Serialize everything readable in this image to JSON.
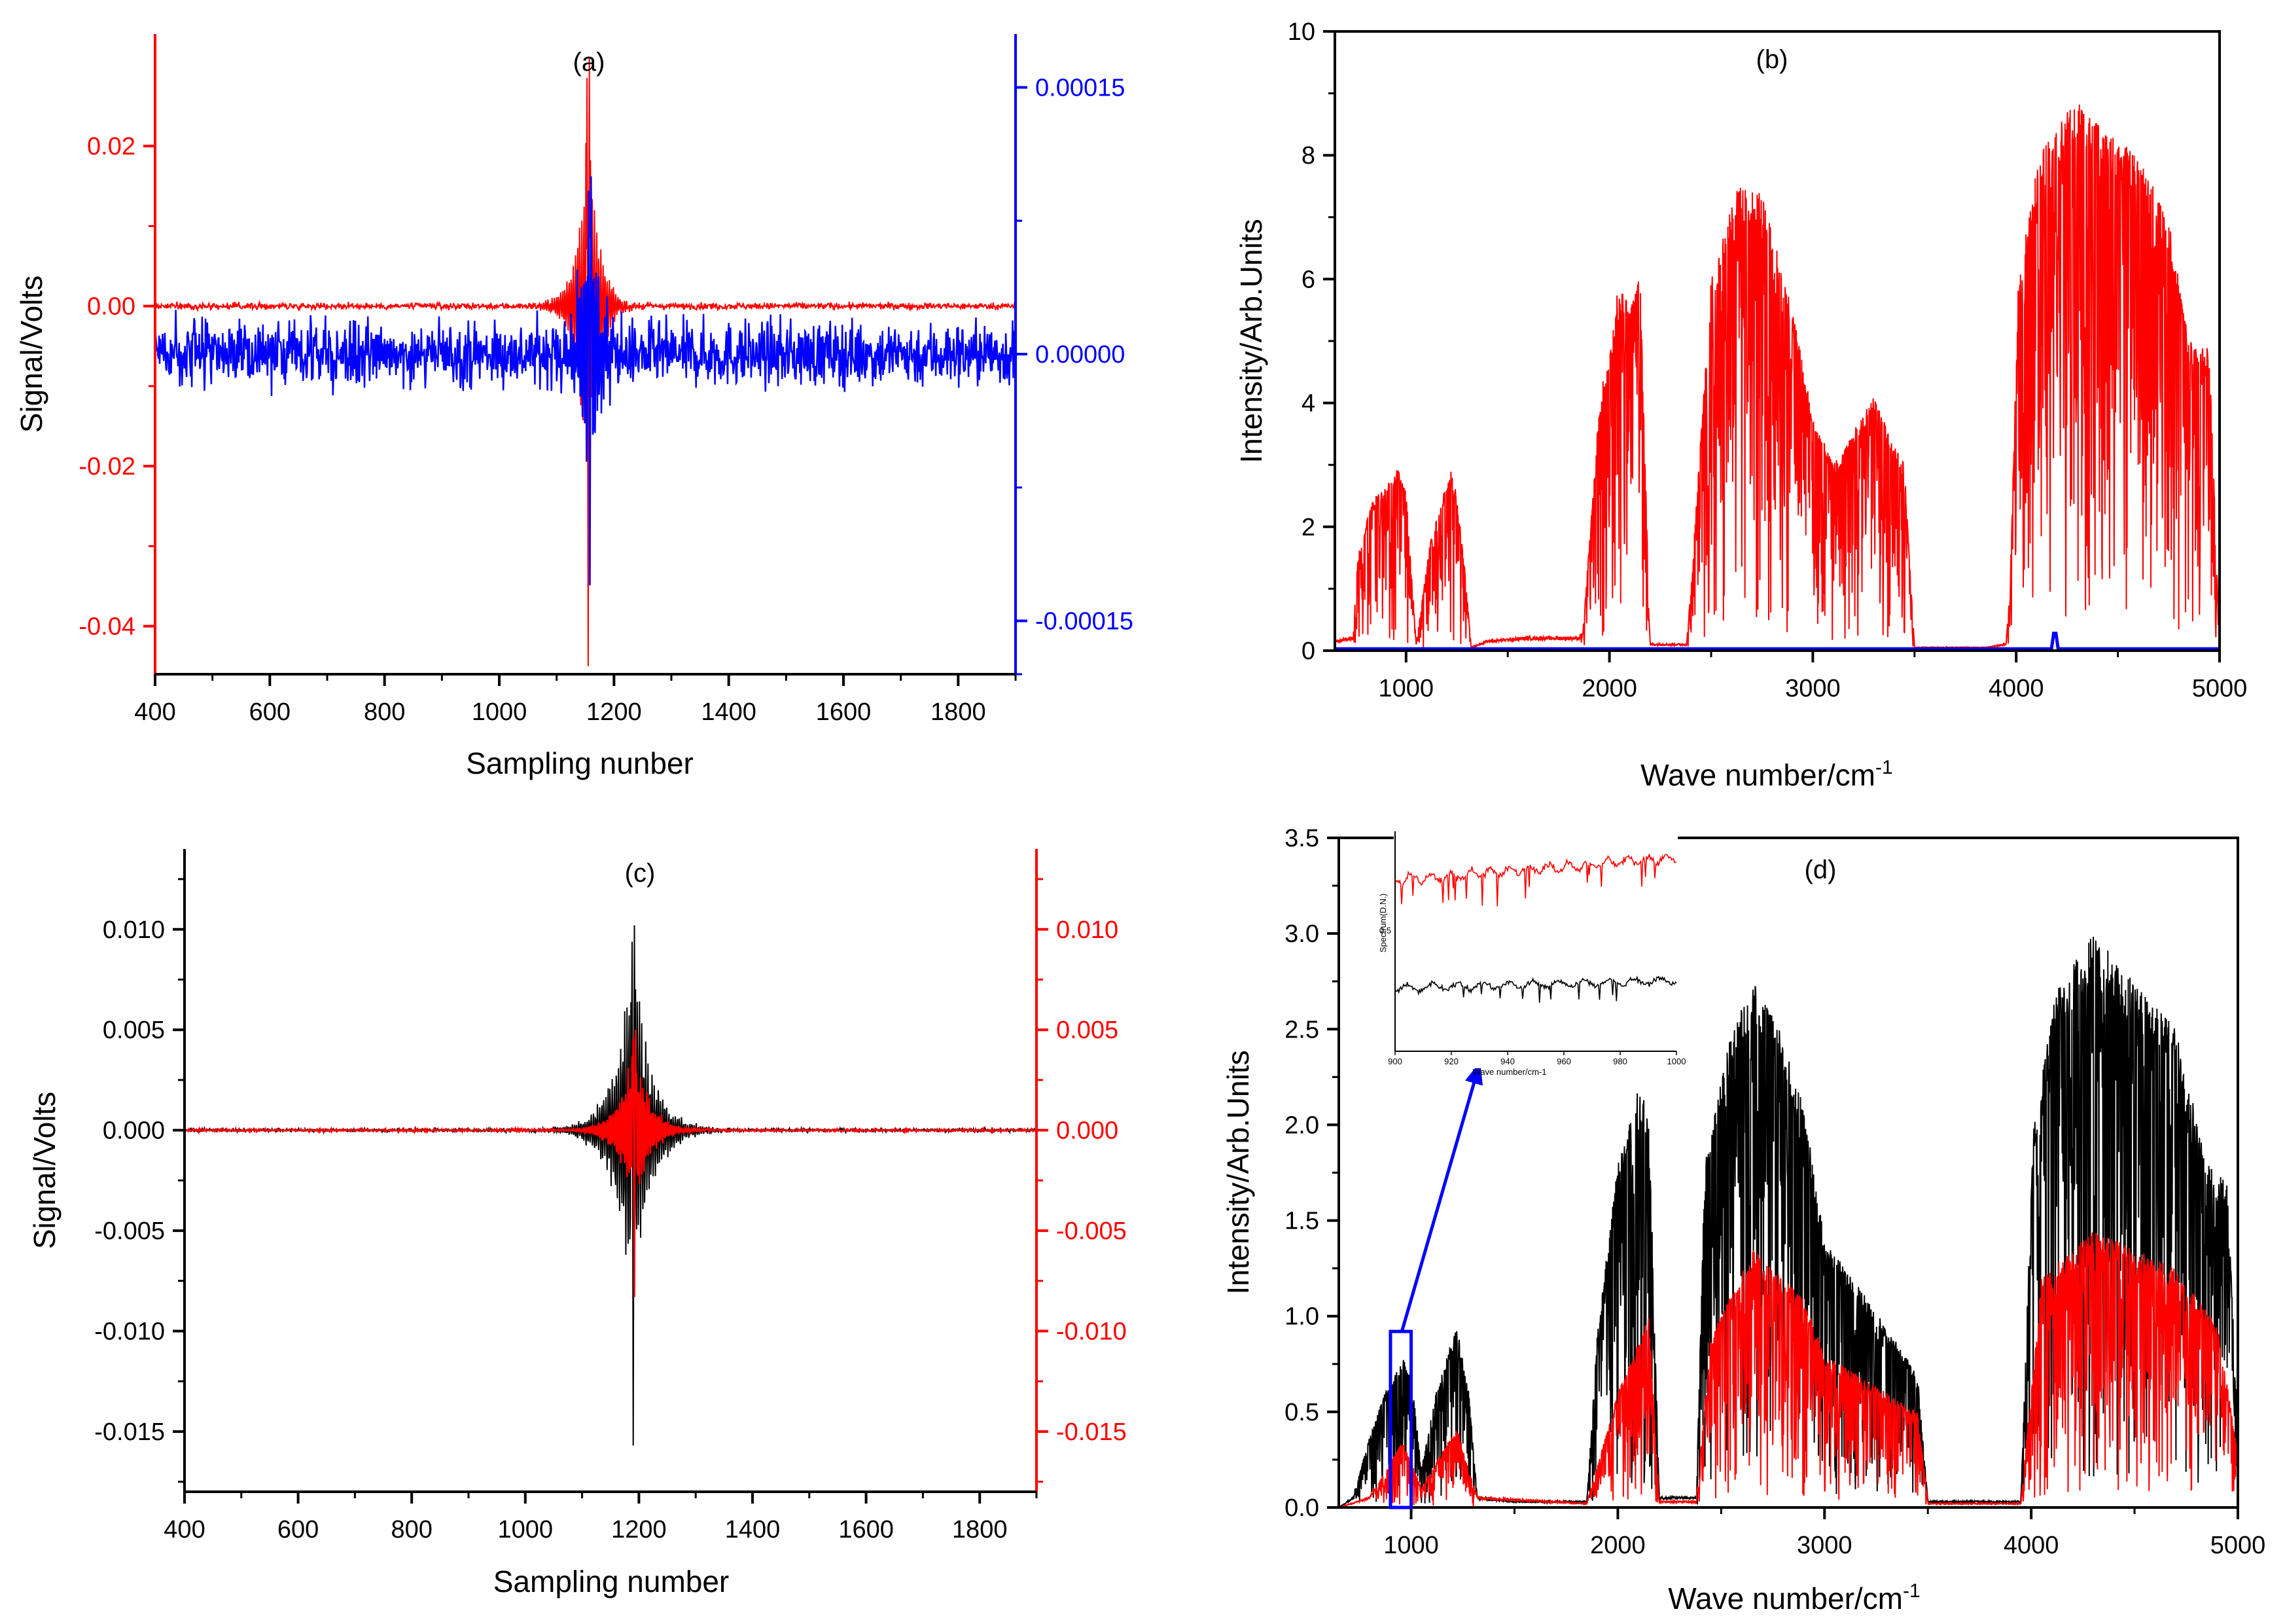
{
  "colors": {
    "red": "#ff0000",
    "blue": "#0000ff",
    "black": "#000000"
  },
  "chart_data": [
    {
      "id": "a",
      "type": "line",
      "title": "(a)",
      "xlabel": "Sampling nunber",
      "ylabel": "Signal/Volts",
      "xlim": [
        400,
        1900
      ],
      "ylim_left": [
        -0.046,
        0.034
      ],
      "ylim_right": [
        -0.00018,
        0.00018
      ],
      "x_ticks": [
        "400",
        "600",
        "800",
        "1000",
        "1200",
        "1400",
        "1600",
        "1800"
      ],
      "y_ticks_left": [
        "0.02",
        "0.00",
        "-0.02",
        "-0.04"
      ],
      "y_ticks_right": [
        "0.00015",
        "0.00000",
        "-0.00015"
      ],
      "series": [
        {
          "name": "red interferogram",
          "axis": "left",
          "color": "#ff0000",
          "center": 1155,
          "peak_min": -0.045,
          "peak_max": 0.031,
          "noise": 0.0004,
          "decay": 18
        },
        {
          "name": "blue interferogram",
          "axis": "right",
          "color": "#0000ff",
          "center": 1158,
          "peak_min": -0.00013,
          "peak_max": 0.0001,
          "noise": 1.8e-05,
          "decay": 20
        }
      ]
    },
    {
      "id": "b",
      "type": "line",
      "title": "(b)",
      "xlabel": "Wave number/cm",
      "xlabel_sup": "-1",
      "ylabel": "Intensity/Arb.Units",
      "xlim": [
        650,
        5000
      ],
      "ylim": [
        0,
        10
      ],
      "x_ticks": [
        "1000",
        "2000",
        "3000",
        "4000",
        "5000"
      ],
      "y_ticks": [
        "0",
        "2",
        "4",
        "6",
        "8",
        "10"
      ],
      "envelope_red": [
        [
          650,
          0.15
        ],
        [
          740,
          0.2
        ],
        [
          760,
          1.5
        ],
        [
          830,
          2.4
        ],
        [
          960,
          2.95
        ],
        [
          1000,
          2.6
        ],
        [
          1050,
          0.1
        ],
        [
          1120,
          1.8
        ],
        [
          1220,
          2.95
        ],
        [
          1250,
          2.5
        ],
        [
          1290,
          1.3
        ],
        [
          1320,
          0.05
        ],
        [
          1400,
          0.15
        ],
        [
          1600,
          0.2
        ],
        [
          1850,
          0.2
        ],
        [
          1870,
          0.3
        ],
        [
          1950,
          4.0
        ],
        [
          2050,
          6.0
        ],
        [
          2100,
          5.5
        ],
        [
          2150,
          6.2
        ],
        [
          2200,
          0.1
        ],
        [
          2380,
          0.1
        ],
        [
          2400,
          1.0
        ],
        [
          2500,
          6.0
        ],
        [
          2620,
          7.5
        ],
        [
          2750,
          7.4
        ],
        [
          2900,
          5.5
        ],
        [
          3000,
          3.8
        ],
        [
          3100,
          3.0
        ],
        [
          3300,
          4.1
        ],
        [
          3450,
          3.0
        ],
        [
          3500,
          0.05
        ],
        [
          3850,
          0.05
        ],
        [
          3950,
          0.1
        ],
        [
          3970,
          1.0
        ],
        [
          4010,
          6.0
        ],
        [
          4120,
          8.2
        ],
        [
          4300,
          8.9
        ],
        [
          4400,
          8.5
        ],
        [
          4600,
          8.0
        ],
        [
          4750,
          7.0
        ],
        [
          4850,
          5.0
        ],
        [
          4950,
          4.9
        ],
        [
          4990,
          1.0
        ],
        [
          5000,
          0.4
        ]
      ],
      "series": [
        {
          "name": "red spectrum",
          "color": "#ff0000"
        },
        {
          "name": "blue spectrum",
          "color": "#0000ff",
          "level": 0.03
        }
      ]
    },
    {
      "id": "c",
      "type": "line",
      "title": "(c)",
      "xlabel": "Sampling number",
      "ylabel": "Signal/Volts",
      "xlim": [
        400,
        1900
      ],
      "ylim_left": [
        -0.018,
        0.014
      ],
      "ylim_right": [
        -0.018,
        0.014
      ],
      "x_ticks": [
        "400",
        "600",
        "800",
        "1000",
        "1200",
        "1400",
        "1600",
        "1800"
      ],
      "y_ticks_left": [
        "0.010",
        "0.005",
        "0.000",
        "-0.005",
        "-0.010",
        "-0.015"
      ],
      "y_ticks_right": [
        "0.010",
        "0.005",
        "0.000",
        "-0.005",
        "-0.010",
        "-0.015"
      ],
      "series": [
        {
          "name": "black interferogram",
          "axis": "left",
          "color": "#000000",
          "center": 1190,
          "peak_min": -0.0157,
          "peak_max": 0.0102,
          "noise": 8e-05,
          "decay": 32
        },
        {
          "name": "red interferogram",
          "axis": "right",
          "color": "#ff0000",
          "center": 1192,
          "peak_min": -0.0083,
          "peak_max": 0.005,
          "noise": 6e-05,
          "decay": 26
        }
      ]
    },
    {
      "id": "d",
      "type": "line",
      "title": "(d)",
      "xlabel": "Wave number/cm",
      "xlabel_sup": "-1",
      "ylabel": "Intensity/Arb.Units",
      "xlim": [
        650,
        5000
      ],
      "ylim": [
        0,
        3.5
      ],
      "x_ticks": [
        "1000",
        "2000",
        "3000",
        "4000",
        "5000"
      ],
      "y_ticks": [
        "0.0",
        "0.5",
        "1.0",
        "1.5",
        "2.0",
        "2.5",
        "3.0",
        "3.5"
      ],
      "envelope_black": [
        [
          650,
          0.0
        ],
        [
          720,
          0.05
        ],
        [
          780,
          0.3
        ],
        [
          850,
          0.55
        ],
        [
          960,
          0.78
        ],
        [
          1000,
          0.7
        ],
        [
          1050,
          0.2
        ],
        [
          1120,
          0.6
        ],
        [
          1220,
          0.95
        ],
        [
          1280,
          0.6
        ],
        [
          1320,
          0.05
        ],
        [
          1500,
          0.03
        ],
        [
          1850,
          0.03
        ],
        [
          1900,
          0.9
        ],
        [
          2000,
          1.8
        ],
        [
          2100,
          2.2
        ],
        [
          2150,
          2.1
        ],
        [
          2200,
          0.05
        ],
        [
          2380,
          0.05
        ],
        [
          2420,
          1.8
        ],
        [
          2550,
          2.5
        ],
        [
          2650,
          2.75
        ],
        [
          2750,
          2.6
        ],
        [
          2900,
          2.1
        ],
        [
          3000,
          1.4
        ],
        [
          3200,
          1.1
        ],
        [
          3450,
          0.7
        ],
        [
          3500,
          0.03
        ],
        [
          3950,
          0.03
        ],
        [
          4010,
          2.0
        ],
        [
          4120,
          2.7
        ],
        [
          4300,
          3.0
        ],
        [
          4500,
          2.75
        ],
        [
          4700,
          2.5
        ],
        [
          4850,
          1.8
        ],
        [
          4950,
          1.7
        ],
        [
          5000,
          0.4
        ]
      ],
      "envelope_red": [
        [
          650,
          0.0
        ],
        [
          800,
          0.05
        ],
        [
          960,
          0.35
        ],
        [
          1050,
          0.1
        ],
        [
          1220,
          0.42
        ],
        [
          1320,
          0.05
        ],
        [
          1850,
          0.02
        ],
        [
          2000,
          0.6
        ],
        [
          2150,
          1.0
        ],
        [
          2200,
          0.03
        ],
        [
          2380,
          0.03
        ],
        [
          2450,
          0.9
        ],
        [
          2650,
          1.35
        ],
        [
          2900,
          1.1
        ],
        [
          3000,
          0.8
        ],
        [
          3450,
          0.5
        ],
        [
          3500,
          0.02
        ],
        [
          3950,
          0.02
        ],
        [
          4050,
          1.2
        ],
        [
          4300,
          1.45
        ],
        [
          4500,
          1.35
        ],
        [
          4700,
          1.25
        ],
        [
          4900,
          0.95
        ],
        [
          5000,
          0.3
        ]
      ],
      "series": [
        {
          "name": "black spectrum",
          "color": "#000000"
        },
        {
          "name": "red spectrum",
          "color": "#ff0000"
        }
      ],
      "highlight_box": {
        "x_range": [
          900,
          1000
        ],
        "y_range": [
          0,
          0.92
        ],
        "color": "#0000ff"
      },
      "inset": {
        "xlim": [
          900,
          1000
        ],
        "x_ticks": [
          "900",
          "920",
          "940",
          "960",
          "980",
          "1000"
        ],
        "y_tick": "0.5",
        "xlabel": "Wave number/cm-1",
        "ylabel": "Spectrum(D.N.)"
      }
    }
  ]
}
